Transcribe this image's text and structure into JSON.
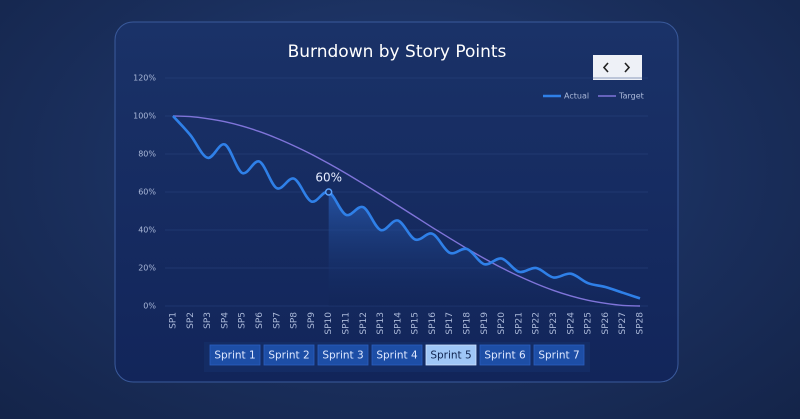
{
  "chart_data": {
    "type": "line",
    "title": "Burndown by  Story Points",
    "categories": [
      "SP1",
      "SP2",
      "SP3",
      "SP4",
      "SP5",
      "SP6",
      "SP7",
      "SP8",
      "SP9",
      "SP10",
      "SP11",
      "SP12",
      "SP13",
      "SP14",
      "SP15",
      "SP16",
      "SP17",
      "SP18",
      "SP19",
      "SP20",
      "SP21",
      "SP22",
      "SP23",
      "SP24",
      "SP25",
      "SP26",
      "SP27",
      "SP28"
    ],
    "series": [
      {
        "name": "Actual",
        "color": "#2f80e8",
        "values": [
          100,
          90,
          78,
          85,
          70,
          76,
          62,
          67,
          55,
          60,
          48,
          52,
          40,
          45,
          35,
          38,
          28,
          30,
          22,
          25,
          18,
          20,
          15,
          17,
          12,
          10,
          7,
          4
        ]
      },
      {
        "name": "Target",
        "color": "#7f74d9",
        "values": [
          100,
          99.7,
          98.6,
          97.0,
          94.7,
          91.8,
          88.3,
          84.3,
          79.9,
          75,
          69.8,
          64.3,
          58.7,
          52.9,
          47.1,
          41.3,
          35.7,
          30.2,
          25,
          20.1,
          15.7,
          11.7,
          8.2,
          5.3,
          3.0,
          1.4,
          0.3,
          0
        ]
      }
    ],
    "ylim": [
      0,
      120
    ],
    "yticks": [
      {
        "value": 0,
        "label": "0%"
      },
      {
        "value": 20,
        "label": "20%"
      },
      {
        "value": 40,
        "label": "40%"
      },
      {
        "value": 60,
        "label": "60%"
      },
      {
        "value": 80,
        "label": "80%"
      },
      {
        "value": 100,
        "label": "100%"
      },
      {
        "value": 120,
        "label": "120%"
      }
    ],
    "grid": true,
    "legend": "top-right",
    "annotation": {
      "x": "SP10",
      "label": "60%",
      "value": 60
    },
    "buttons": [
      "Sprint 1",
      "Sprint 2",
      "Sprint 3",
      "Sprint 4",
      "Sprint 5",
      "Sprint 6",
      "Sprint 7"
    ],
    "active_button": "Sprint 5"
  }
}
